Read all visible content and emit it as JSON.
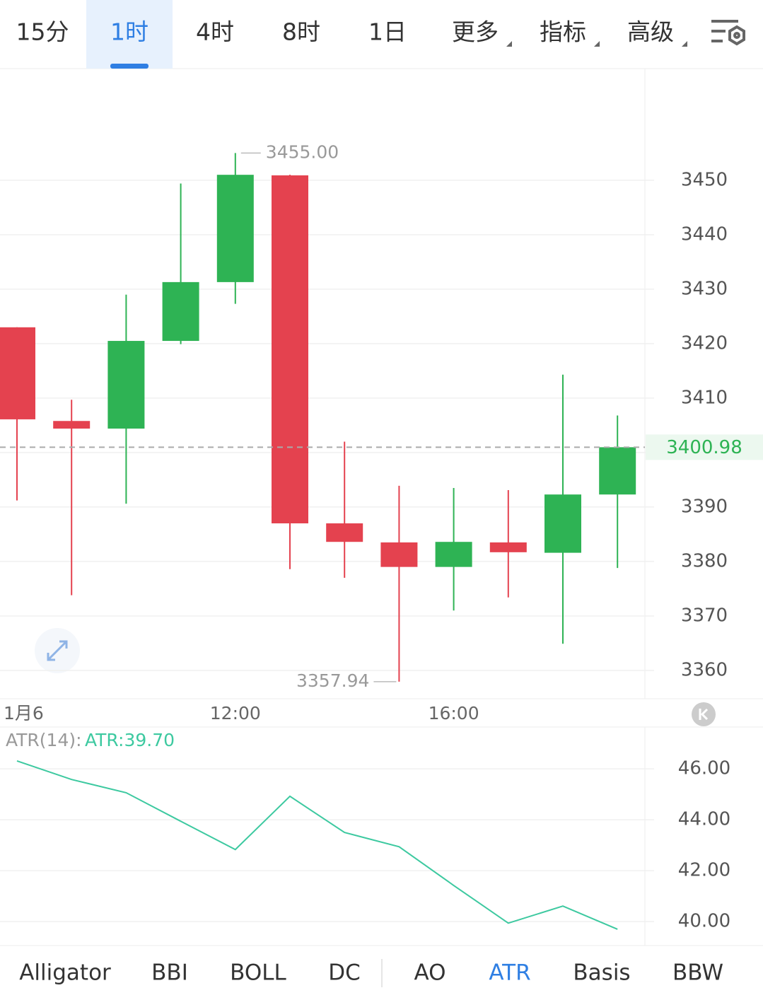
{
  "tabs": {
    "items": [
      {
        "label": "15分"
      },
      {
        "label": "1时"
      },
      {
        "label": "4时"
      },
      {
        "label": "8时"
      },
      {
        "label": "1日"
      },
      {
        "label": "更多",
        "dropdown": true
      },
      {
        "label": "指标",
        "dropdown": true
      },
      {
        "label": "高级",
        "dropdown": true
      }
    ],
    "active": 1
  },
  "indicators": {
    "items": [
      "Alligator",
      "BBI",
      "BOLL",
      "DC",
      "AO",
      "ATR",
      "Basis",
      "BBW"
    ],
    "active": 5
  },
  "chart_data": [
    {
      "type": "candlestick",
      "categories": [
        "1月6",
        null,
        null,
        null,
        "12:00",
        null,
        null,
        null,
        "16:00",
        null,
        null,
        null
      ],
      "open": [
        3423.0,
        3405.8,
        3404.4,
        3420.5,
        3431.3,
        3450.9,
        3387.0,
        3383.5,
        3379.0,
        3383.5,
        3381.6,
        3392.3
      ],
      "high": [
        3423.0,
        3409.7,
        3429.0,
        3449.4,
        3455.0,
        3451.0,
        3402.0,
        3393.9,
        3393.5,
        3393.1,
        3414.3,
        3406.8
      ],
      "low": [
        3391.2,
        3373.8,
        3390.6,
        3419.9,
        3427.3,
        3378.6,
        3377.0,
        3357.94,
        3371.0,
        3373.4,
        3364.9,
        3378.8
      ],
      "close": [
        3406.1,
        3404.4,
        3420.5,
        3431.3,
        3451.0,
        3387.0,
        3383.6,
        3379.0,
        3383.6,
        3381.7,
        3392.3,
        3400.98
      ],
      "up_color": "#2eb354",
      "down_color": "#e4424f",
      "ylim": [
        3354.8,
        3470.5
      ],
      "yticks": [
        3360,
        3370,
        3380,
        3390,
        3400,
        3410,
        3420,
        3430,
        3440,
        3450
      ],
      "grid": true,
      "last_price": 3400.98,
      "high_label": {
        "value": 3455,
        "label": "3455.00"
      },
      "low_label": 3357.94
    },
    {
      "type": "line",
      "title": "ATR(14):",
      "series": [
        {
          "name": "ATR:39.70",
          "color": "#3dc9a0",
          "values": [
            46.31,
            45.58,
            45.06,
            43.94,
            42.83,
            44.92,
            43.5,
            42.94,
            41.42,
            39.94,
            40.61,
            39.7
          ]
        }
      ],
      "ylim": [
        39.06,
        47.64
      ],
      "yticks": [
        {
          "value": 40,
          "label": "40.00"
        },
        {
          "value": 42,
          "label": "42.00"
        },
        {
          "value": 44,
          "label": "44.00"
        },
        {
          "value": 46,
          "label": "46.00"
        }
      ],
      "grid": true
    }
  ]
}
